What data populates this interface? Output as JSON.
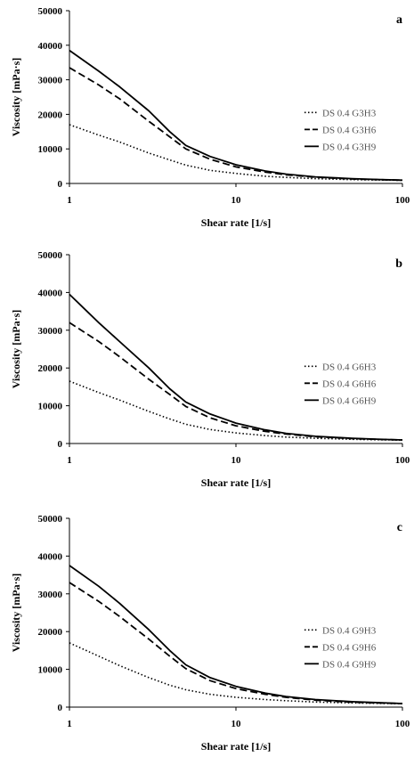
{
  "chart_data": [
    {
      "type": "line",
      "panel_label": "a",
      "xlabel": "Shear rate [1/s]",
      "ylabel": "Viscosity [mPa·s]",
      "x_scale": "log",
      "xlim": [
        1,
        100
      ],
      "ylim": [
        0,
        50000
      ],
      "x_ticks": [
        "1",
        "10",
        "100"
      ],
      "y_ticks": [
        "0",
        "10000",
        "20000",
        "30000",
        "40000",
        "50000"
      ],
      "legend_position": "right",
      "series": [
        {
          "name": "DS 0.4 G3H3",
          "style": "dotted",
          "x": [
            1,
            1.5,
            2,
            3,
            4,
            5,
            7,
            10,
            15,
            20,
            30,
            50,
            70,
            100
          ],
          "y": [
            17000,
            14000,
            12000,
            8800,
            6800,
            5300,
            3800,
            2900,
            2100,
            1750,
            1400,
            1100,
            1000,
            900
          ]
        },
        {
          "name": "DS 0.4 G3H6",
          "style": "dashed",
          "x": [
            1,
            1.5,
            2,
            3,
            4,
            5,
            7,
            10,
            15,
            20,
            30,
            50,
            70,
            100
          ],
          "y": [
            33500,
            28500,
            24500,
            18000,
            13500,
            10000,
            7000,
            4800,
            3300,
            2500,
            1800,
            1300,
            1100,
            950
          ]
        },
        {
          "name": "DS 0.4 G3H9",
          "style": "solid",
          "x": [
            1,
            1.5,
            2,
            3,
            4,
            5,
            7,
            10,
            15,
            20,
            30,
            50,
            70,
            100
          ],
          "y": [
            38500,
            32500,
            28000,
            21000,
            15000,
            11000,
            7800,
            5400,
            3600,
            2700,
            1900,
            1400,
            1150,
            950
          ]
        }
      ]
    },
    {
      "type": "line",
      "panel_label": "b",
      "xlabel": "Shear rate [1/s]",
      "ylabel": "Viscosity [mPa·s]",
      "x_scale": "log",
      "xlim": [
        1,
        100
      ],
      "ylim": [
        0,
        50000
      ],
      "x_ticks": [
        "1",
        "10",
        "100"
      ],
      "y_ticks": [
        "0",
        "10000",
        "20000",
        "30000",
        "40000",
        "50000"
      ],
      "legend_position": "right",
      "series": [
        {
          "name": "DS 0.4 G6H3",
          "style": "dotted",
          "x": [
            1,
            1.5,
            2,
            3,
            4,
            5,
            7,
            10,
            15,
            20,
            30,
            50,
            70,
            100
          ],
          "y": [
            16500,
            13500,
            11500,
            8500,
            6500,
            5100,
            3700,
            2800,
            2100,
            1700,
            1400,
            1100,
            1000,
            900
          ]
        },
        {
          "name": "DS 0.4 G6H6",
          "style": "dashed",
          "x": [
            1,
            1.5,
            2,
            3,
            4,
            5,
            7,
            10,
            15,
            20,
            30,
            50,
            70,
            100
          ],
          "y": [
            32000,
            27000,
            23000,
            17000,
            13000,
            9800,
            6800,
            4700,
            3200,
            2500,
            1800,
            1300,
            1100,
            950
          ]
        },
        {
          "name": "DS 0.4 G6H9",
          "style": "solid",
          "x": [
            1,
            1.5,
            2,
            3,
            4,
            5,
            7,
            10,
            15,
            20,
            30,
            50,
            70,
            100
          ],
          "y": [
            39500,
            32000,
            27000,
            20000,
            14500,
            11000,
            7800,
            5400,
            3600,
            2700,
            1900,
            1400,
            1150,
            950
          ]
        }
      ]
    },
    {
      "type": "line",
      "panel_label": "c",
      "xlabel": "Shear rate [1/s]",
      "ylabel": "Viscosity [mPa·s]",
      "x_scale": "log",
      "xlim": [
        1,
        100
      ],
      "ylim": [
        0,
        50000
      ],
      "x_ticks": [
        "1",
        "10",
        "100"
      ],
      "y_ticks": [
        "0",
        "10000",
        "20000",
        "30000",
        "40000",
        "50000"
      ],
      "legend_position": "right",
      "series": [
        {
          "name": "DS 0.4 G9H3",
          "style": "dotted",
          "x": [
            1,
            1.5,
            2,
            3,
            4,
            5,
            7,
            10,
            15,
            20,
            30,
            50,
            70,
            100
          ],
          "y": [
            17000,
            13500,
            11000,
            7800,
            5800,
            4600,
            3400,
            2600,
            2000,
            1700,
            1350,
            1100,
            1000,
            900
          ]
        },
        {
          "name": "DS 0.4 G9H6",
          "style": "dashed",
          "x": [
            1,
            1.5,
            2,
            3,
            4,
            5,
            7,
            10,
            15,
            20,
            30,
            50,
            70,
            100
          ],
          "y": [
            33000,
            28000,
            24000,
            18000,
            13500,
            10200,
            7000,
            4900,
            3400,
            2600,
            1850,
            1300,
            1100,
            950
          ]
        },
        {
          "name": "DS 0.4 G9H9",
          "style": "solid",
          "x": [
            1,
            1.5,
            2,
            3,
            4,
            5,
            7,
            10,
            15,
            20,
            30,
            50,
            70,
            100
          ],
          "y": [
            37500,
            32000,
            27500,
            20500,
            15000,
            11200,
            7800,
            5500,
            3700,
            2800,
            2000,
            1450,
            1200,
            950
          ]
        }
      ]
    }
  ]
}
